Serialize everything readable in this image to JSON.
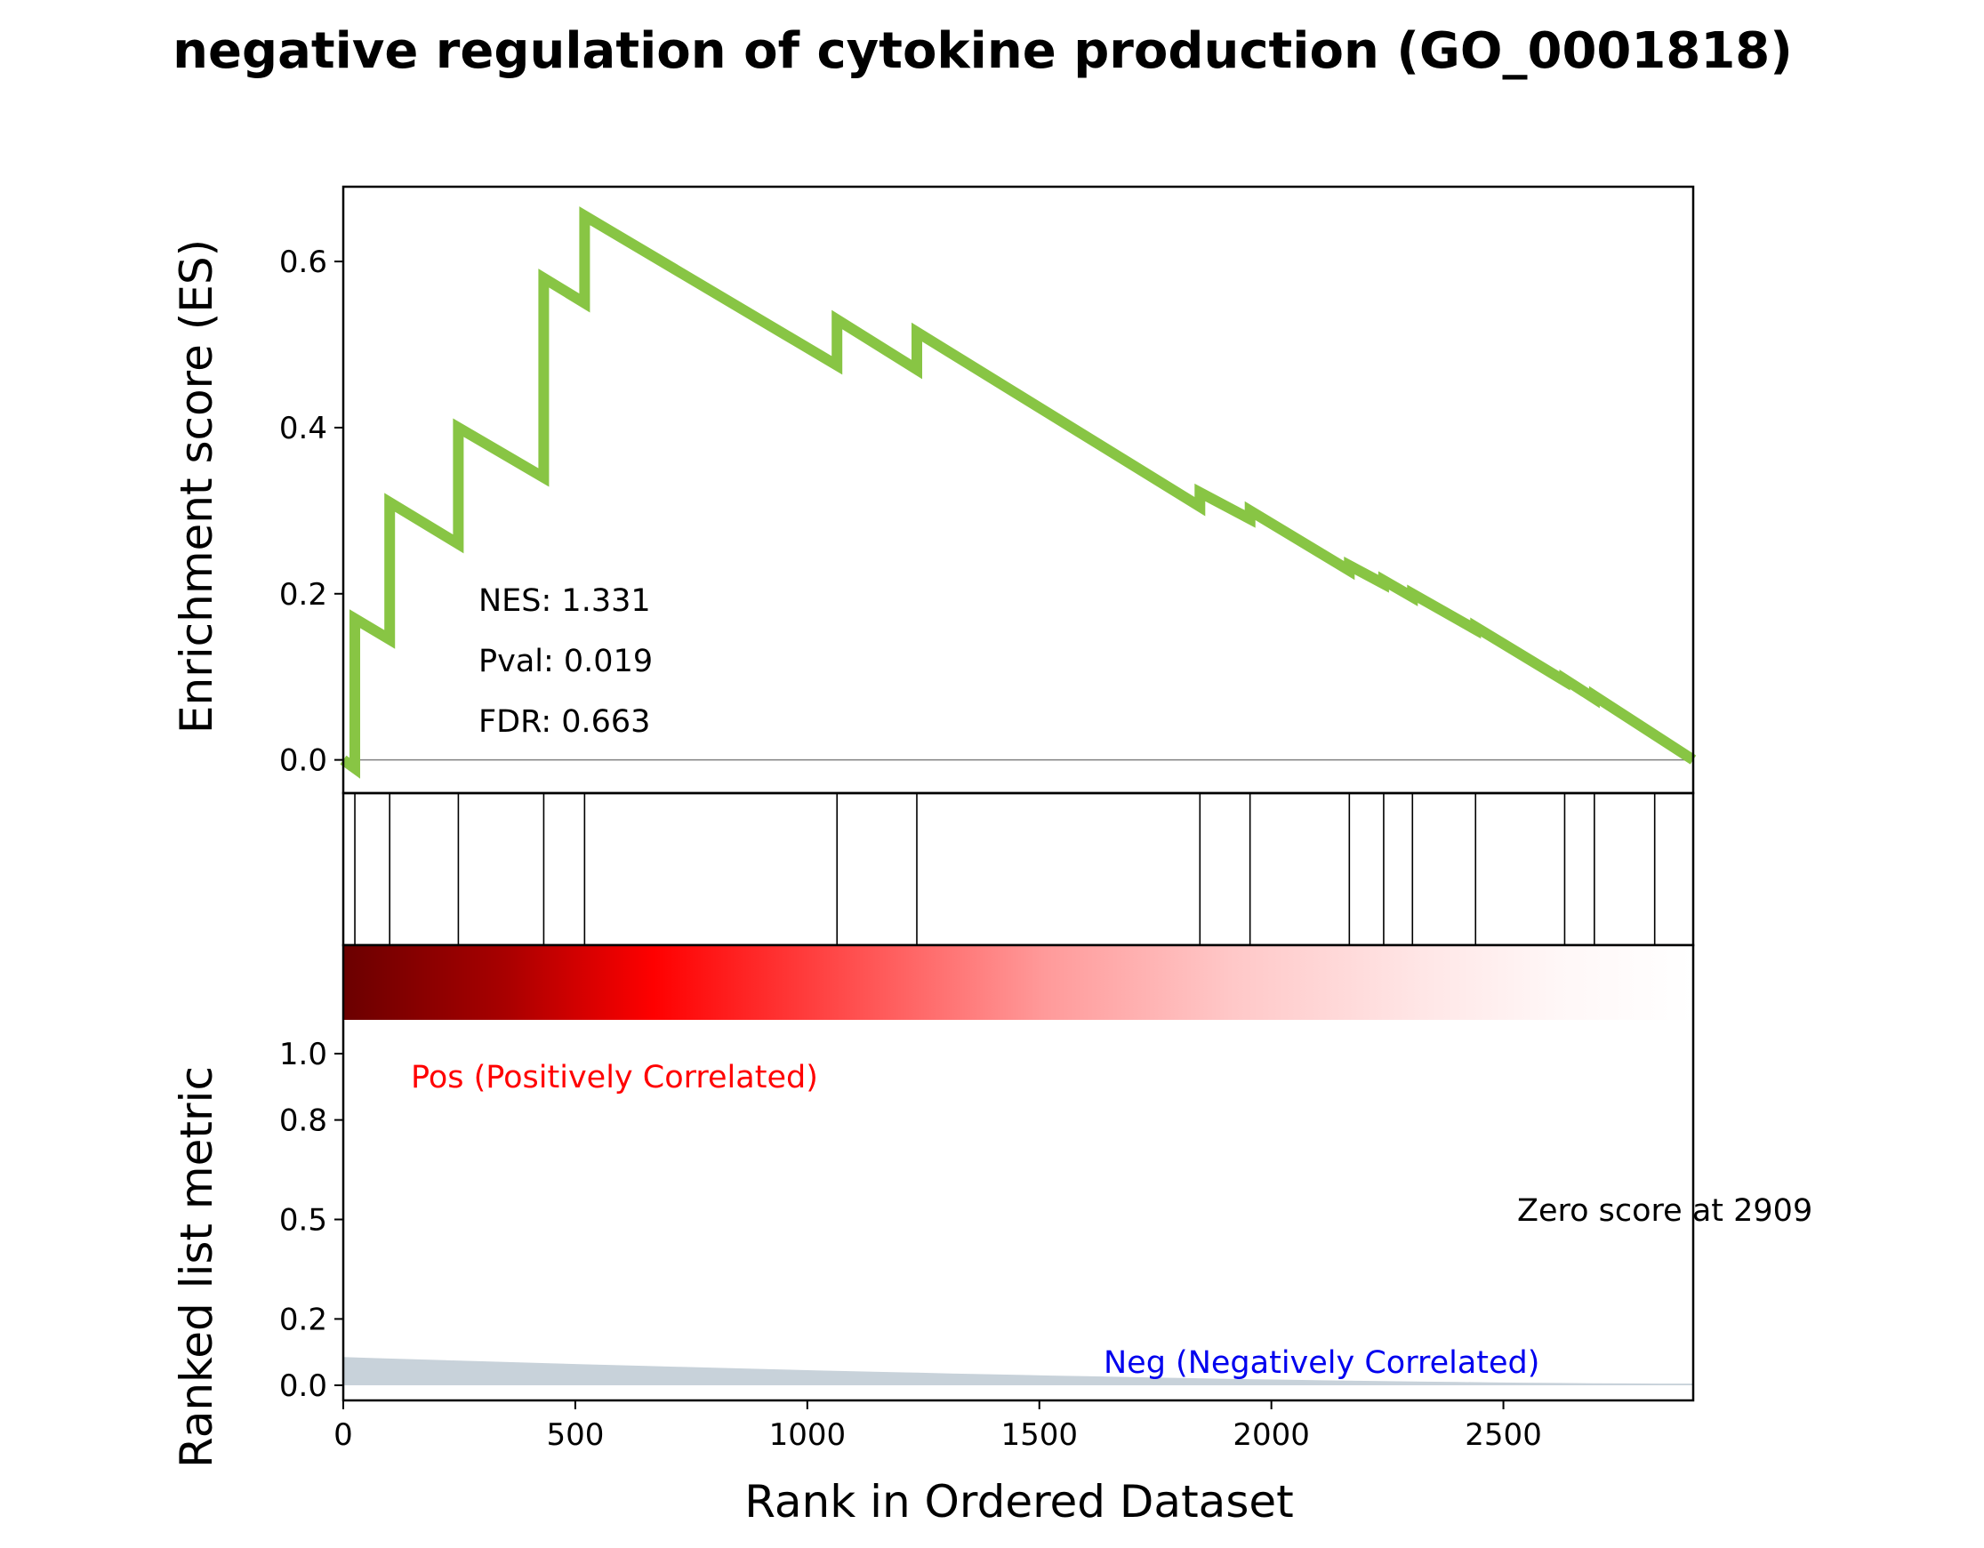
{
  "chart_data": {
    "type": "line",
    "title": "negative regulation of cytokine production (GO_0001818)",
    "xlabel": "Rank in Ordered Dataset",
    "es_panel": {
      "ylabel": "Enrichment score (ES)",
      "ylim": [
        -0.04,
        0.69
      ],
      "yticks": [
        0.0,
        0.2,
        0.4,
        0.6
      ],
      "ytick_labels": [
        "0.0",
        "0.2",
        "0.4",
        "0.6"
      ],
      "line_color": "#88c544",
      "points": [
        [
          0,
          0.0
        ],
        [
          25,
          -0.01
        ],
        [
          25,
          0.17
        ],
        [
          100,
          0.145
        ],
        [
          100,
          0.31
        ],
        [
          248,
          0.26
        ],
        [
          248,
          0.4
        ],
        [
          432,
          0.34
        ],
        [
          432,
          0.58
        ],
        [
          520,
          0.55
        ],
        [
          520,
          0.655
        ],
        [
          1064,
          0.475
        ],
        [
          1064,
          0.53
        ],
        [
          1236,
          0.47
        ],
        [
          1236,
          0.515
        ],
        [
          1846,
          0.305
        ],
        [
          1846,
          0.322
        ],
        [
          1954,
          0.29
        ],
        [
          1954,
          0.3
        ],
        [
          2168,
          0.228
        ],
        [
          2168,
          0.234
        ],
        [
          2242,
          0.212
        ],
        [
          2242,
          0.216
        ],
        [
          2304,
          0.196
        ],
        [
          2304,
          0.2
        ],
        [
          2440,
          0.157
        ],
        [
          2440,
          0.16
        ],
        [
          2632,
          0.095
        ],
        [
          2632,
          0.097
        ],
        [
          2696,
          0.074
        ],
        [
          2696,
          0.077
        ],
        [
          2909,
          0.0
        ]
      ],
      "stats": {
        "nes": "NES: 1.331",
        "pval": "Pval: 0.019",
        "fdr": "FDR: 0.663"
      }
    },
    "hits": [
      25,
      100,
      248,
      432,
      520,
      1064,
      1236,
      1846,
      1954,
      2168,
      2242,
      2304,
      2440,
      2632,
      2696,
      2826
    ],
    "rank_panel": {
      "ylabel": "Ranked list metric",
      "yticks": [
        0.0,
        0.2,
        0.5,
        0.8,
        1.0
      ],
      "ytick_labels": [
        "0.0",
        "0.2",
        "0.5",
        "0.8",
        "1.0"
      ],
      "metric_start": 0.085,
      "metric_end": 0.005,
      "fill_color": "#c8d2da",
      "pos_label": "Pos (Positively Correlated)",
      "pos_color": "#ff0000",
      "neg_label": "Neg (Negatively Correlated)",
      "neg_color": "#0000ee",
      "zero_label": "Zero score at 2909"
    },
    "xlim": [
      0,
      2909
    ],
    "xticks": [
      0,
      500,
      1000,
      1500,
      2000,
      2500
    ],
    "xtick_labels": [
      "0",
      "500",
      "1000",
      "1500",
      "2000",
      "2500"
    ]
  }
}
